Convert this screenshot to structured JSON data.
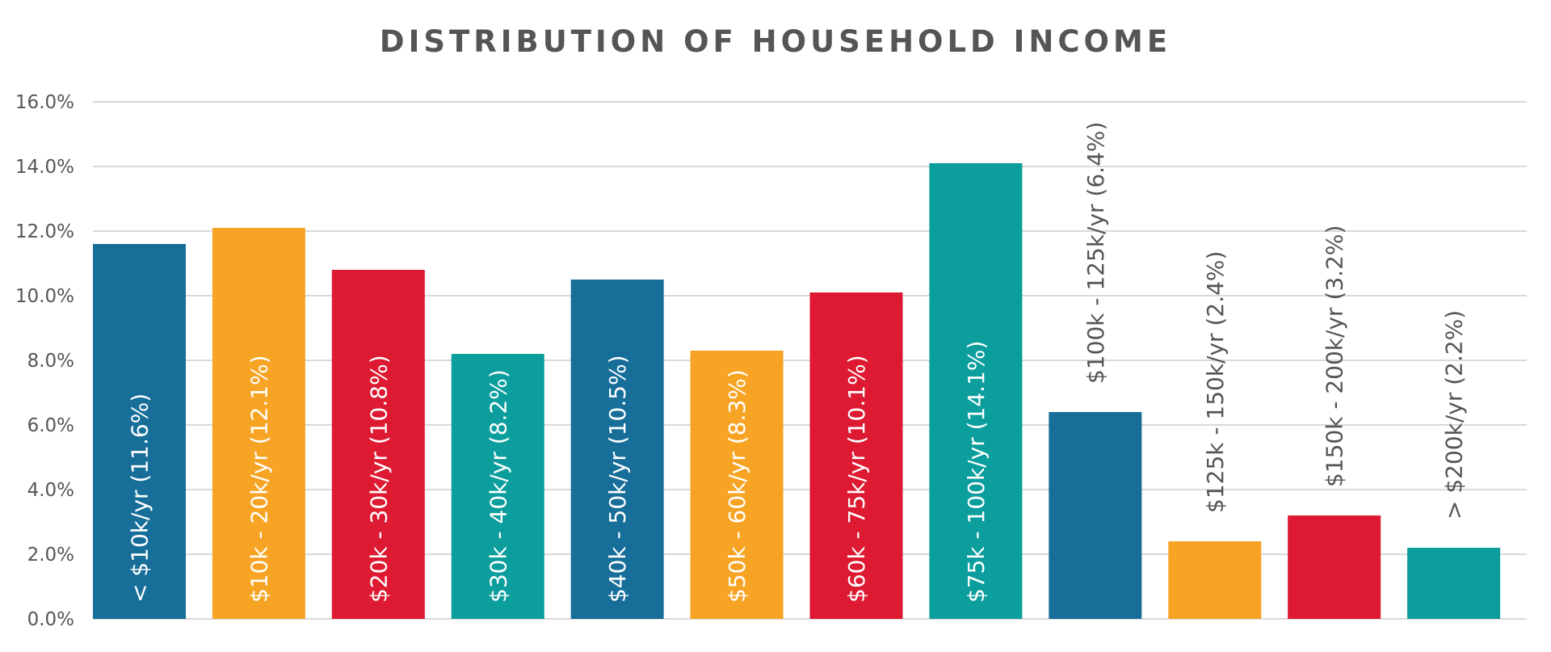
{
  "chart_data": {
    "type": "bar",
    "title": "DISTRIBUTION OF HOUSEHOLD INCOME",
    "xlabel": "",
    "ylabel": "",
    "ylim": [
      0,
      16
    ],
    "y_ticks": [
      "0.0%",
      "2.0%",
      "4.0%",
      "6.0%",
      "8.0%",
      "10.0%",
      "12.0%",
      "14.0%",
      "16.0%"
    ],
    "y_tick_values": [
      0,
      2,
      4,
      6,
      8,
      10,
      12,
      14,
      16
    ],
    "grid": true,
    "legend": "none",
    "categories": [
      "< $10k/yr (11.6%)",
      "$10k - 20k/yr (12.1%)",
      "$20k - 30k/yr (10.8%)",
      "$30k - 40k/yr (8.2%)",
      "$40k - 50k/yr (10.5%)",
      "$50k - 60k/yr (8.3%)",
      "$60k - 75k/yr (10.1%)",
      "$75k - 100k/yr (14.1%)",
      "$100k - 125k/yr (6.4%)",
      "$125k - 150k/yr (2.4%)",
      "$150k - 200k/yr (3.2%)",
      "> $200k/yr (2.2%)"
    ],
    "values": [
      11.6,
      12.1,
      10.8,
      8.2,
      10.5,
      8.3,
      10.1,
      14.1,
      6.4,
      2.4,
      3.2,
      2.2
    ],
    "colors": [
      "#166e99",
      "#f7a424",
      "#dd1a32",
      "#0b9e9d",
      "#166e99",
      "#f7a424",
      "#dd1a32",
      "#0b9e9d",
      "#166e99",
      "#f7a424",
      "#dd1a32",
      "#0b9e9d"
    ]
  }
}
